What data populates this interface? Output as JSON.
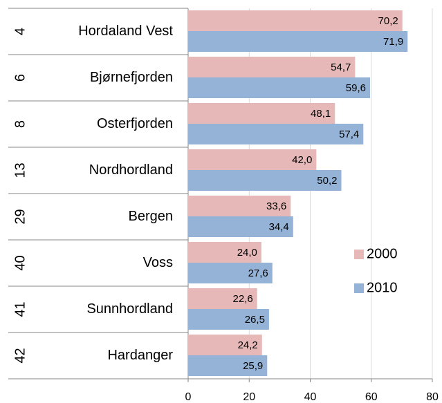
{
  "chart_data": {
    "type": "hbar",
    "groups": [
      "4",
      "6",
      "8",
      "13",
      "29",
      "40",
      "41",
      "42"
    ],
    "categories": [
      "Hordaland Vest",
      "Bjørnefjorden",
      "Osterfjorden",
      "Nordhordland",
      "Bergen",
      "Voss",
      "Sunnhordland",
      "Hardanger"
    ],
    "series": [
      {
        "name": "2000",
        "color": "#e6b9b8",
        "values": [
          70.2,
          54.7,
          48.1,
          42.0,
          33.6,
          24.0,
          22.6,
          24.2
        ],
        "value_labels": [
          "70,2",
          "54,7",
          "48,1",
          "42,0",
          "33,6",
          "24,0",
          "22,6",
          "24,2"
        ]
      },
      {
        "name": "2010",
        "color": "#95b3d7",
        "values": [
          71.9,
          59.6,
          57.4,
          50.2,
          34.4,
          27.6,
          26.5,
          25.9
        ],
        "value_labels": [
          "71,9",
          "59,6",
          "57,4",
          "50,2",
          "34,4",
          "27,6",
          "26,5",
          "25,9"
        ]
      }
    ],
    "xlim": [
      0,
      80
    ],
    "xticks": [
      0,
      20,
      40,
      60,
      80
    ],
    "grid": true,
    "legend": "right"
  }
}
